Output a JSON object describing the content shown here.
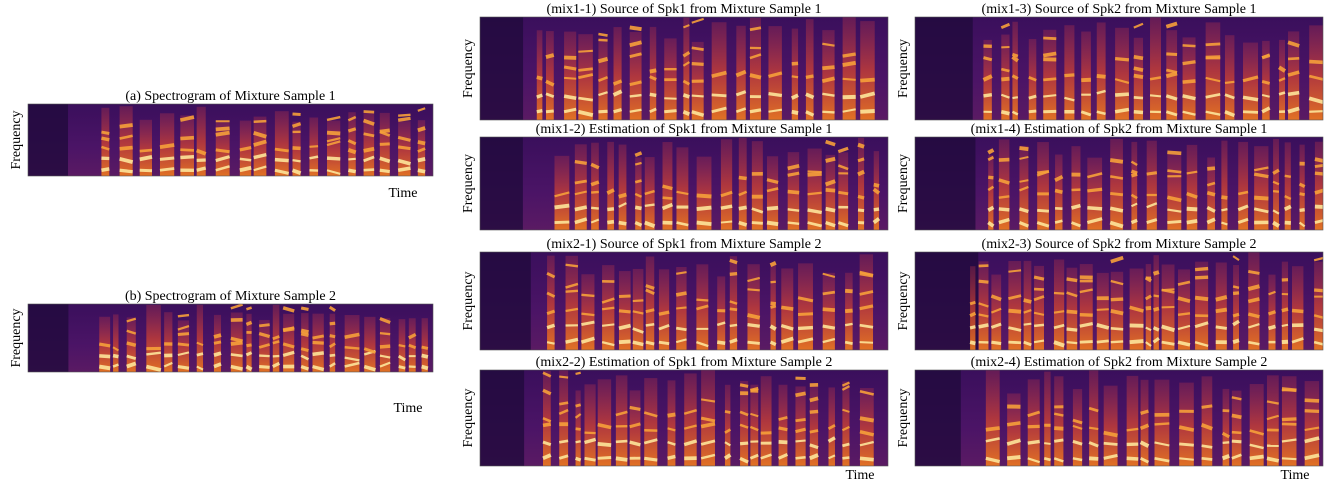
{
  "panels": [
    {
      "title": "(a) Spectrogram of Mixture Sample 1",
      "y_label": "Frequency",
      "x_label": "Time"
    },
    {
      "title": "(b) Spectrogram of Mixture Sample 2",
      "y_label": "Frequency",
      "x_label": "Time"
    },
    {
      "title": "(mix1-1) Source of Spk1 from Mixture Sample 1",
      "y_label": "Frequency"
    },
    {
      "title": "(mix1-3) Source of Spk2 from Mixture Sample 1",
      "y_label": "Frequency"
    },
    {
      "title": "(mix1-2) Estimation of Spk1 from Mixture Sample 1",
      "y_label": "Frequency"
    },
    {
      "title": "(mix1-4) Estimation of Spk2 from Mixture Sample 1",
      "y_label": "Frequency"
    },
    {
      "title": "(mix2-1) Source of Spk1 from Mixture Sample 2",
      "y_label": "Frequency"
    },
    {
      "title": "(mix2-3) Source of Spk2 from Mixture Sample 2",
      "y_label": "Frequency"
    },
    {
      "title": "(mix2-2) Estimation of Spk1 from Mixture Sample 2",
      "y_label": "Frequency",
      "x_label": "Time"
    },
    {
      "title": "(mix2-4) Estimation of Spk2 from Mixture Sample 2",
      "y_label": "Frequency",
      "x_label": "Time"
    }
  ]
}
